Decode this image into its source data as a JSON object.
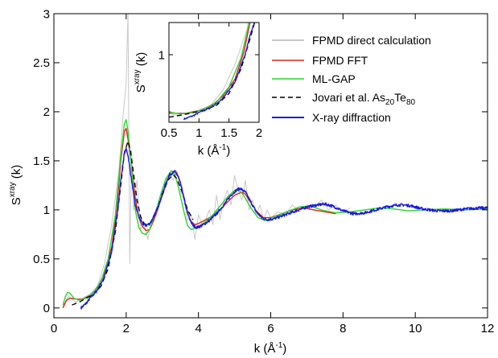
{
  "chart_data": {
    "type": "line",
    "main": {
      "xlabel": {
        "text": "k (Å",
        "sup": "-1",
        "tail": ")"
      },
      "ylabel": {
        "text": "S",
        "sup": "xray",
        "tail": " (k)"
      },
      "xlim": [
        0,
        12
      ],
      "ylim": [
        -0.1,
        3
      ],
      "xticks": [
        0,
        2,
        4,
        6,
        8,
        10,
        12
      ],
      "xtick_labels": [
        "0",
        "2",
        "4",
        "6",
        "8",
        "10",
        "12"
      ],
      "yticks": [
        0,
        0.5,
        1,
        1.5,
        2,
        2.5,
        3
      ],
      "ytick_labels": [
        "0",
        "0.5",
        "1",
        "1.5",
        "2",
        "2.5",
        "3"
      ],
      "grid": false,
      "legend_position": "top-right"
    },
    "inset": {
      "xlabel": {
        "text": "k (Å",
        "sup": "-1",
        "tail": ")"
      },
      "ylabel": {
        "text": "S",
        "sup": "xray",
        "tail": " (k)"
      },
      "xlim": [
        0.5,
        2
      ],
      "ylim": [
        -0.05,
        1.5
      ],
      "xticks": [
        0.5,
        1,
        1.5,
        2
      ],
      "xtick_labels": [
        "0.5",
        "1",
        "1.5",
        "2"
      ],
      "yticks": [
        1
      ],
      "ytick_labels": [
        "1"
      ]
    },
    "series": [
      {
        "name": "FPMD direct calculation",
        "color": "#c8c8c8",
        "dash": "solid",
        "points": [
          [
            0.25,
            0.02
          ],
          [
            0.4,
            0.12
          ],
          [
            0.6,
            0.06
          ],
          [
            0.8,
            0.1
          ],
          [
            1.0,
            0.14
          ],
          [
            1.2,
            0.22
          ],
          [
            1.4,
            0.45
          ],
          [
            1.6,
            0.85
          ],
          [
            1.8,
            1.4
          ],
          [
            1.9,
            1.9
          ],
          [
            1.95,
            2.1
          ],
          [
            2.0,
            2.3
          ],
          [
            2.05,
            3.0
          ],
          [
            2.1,
            0.45
          ],
          [
            2.15,
            1.6
          ],
          [
            2.2,
            1.0
          ],
          [
            2.3,
            1.3
          ],
          [
            2.4,
            0.8
          ],
          [
            2.5,
            0.85
          ],
          [
            2.6,
            0.7
          ],
          [
            2.7,
            0.9
          ],
          [
            2.8,
            0.95
          ],
          [
            2.9,
            1.05
          ],
          [
            3.0,
            1.15
          ],
          [
            3.1,
            1.3
          ],
          [
            3.2,
            1.38
          ],
          [
            3.3,
            1.3
          ],
          [
            3.4,
            1.4
          ],
          [
            3.5,
            1.2
          ],
          [
            3.6,
            1.1
          ],
          [
            3.7,
            0.9
          ],
          [
            3.8,
            0.95
          ],
          [
            3.9,
            0.7
          ],
          [
            4.0,
            0.95
          ],
          [
            4.1,
            0.85
          ],
          [
            4.2,
            0.9
          ],
          [
            4.3,
            1.0
          ],
          [
            4.4,
            0.85
          ],
          [
            4.5,
            1.15
          ],
          [
            4.6,
            0.9
          ],
          [
            4.7,
            1.1
          ],
          [
            4.8,
            1.2
          ],
          [
            4.9,
            1.05
          ],
          [
            5.0,
            1.35
          ],
          [
            5.1,
            1.2
          ],
          [
            5.2,
            1.1
          ],
          [
            5.3,
            1.3
          ],
          [
            5.4,
            1.0
          ],
          [
            5.5,
            1.1
          ],
          [
            5.6,
            0.95
          ],
          [
            5.7,
            1.05
          ],
          [
            5.8,
            0.9
          ],
          [
            5.9,
            1.0
          ],
          [
            6.0,
            0.92
          ],
          [
            6.2,
            0.98
          ],
          [
            6.4,
            0.95
          ],
          [
            6.6,
            1.05
          ],
          [
            6.8,
            0.98
          ],
          [
            7.0,
            1.05
          ],
          [
            7.2,
            1.02
          ],
          [
            7.4,
            1.1
          ],
          [
            7.6,
            1.0
          ],
          [
            7.8,
            1.05
          ],
          [
            8.0,
            0.98
          ],
          [
            8.2,
            1.02
          ]
        ]
      },
      {
        "name": "FPMD FFT",
        "color": "#e0231c",
        "dash": "solid",
        "points": [
          [
            0.25,
            0.0
          ],
          [
            0.35,
            0.08
          ],
          [
            0.45,
            0.1
          ],
          [
            0.6,
            0.09
          ],
          [
            0.8,
            0.09
          ],
          [
            1.0,
            0.13
          ],
          [
            1.2,
            0.2
          ],
          [
            1.4,
            0.36
          ],
          [
            1.6,
            0.62
          ],
          [
            1.75,
            1.05
          ],
          [
            1.85,
            1.5
          ],
          [
            1.95,
            1.8
          ],
          [
            2.0,
            1.83
          ],
          [
            2.05,
            1.72
          ],
          [
            2.15,
            1.45
          ],
          [
            2.25,
            1.12
          ],
          [
            2.35,
            0.92
          ],
          [
            2.45,
            0.83
          ],
          [
            2.55,
            0.79
          ],
          [
            2.65,
            0.8
          ],
          [
            2.75,
            0.88
          ],
          [
            2.85,
            0.98
          ],
          [
            3.0,
            1.15
          ],
          [
            3.15,
            1.32
          ],
          [
            3.3,
            1.39
          ],
          [
            3.4,
            1.38
          ],
          [
            3.5,
            1.28
          ],
          [
            3.6,
            1.12
          ],
          [
            3.7,
            0.96
          ],
          [
            3.8,
            0.88
          ],
          [
            3.9,
            0.85
          ],
          [
            4.0,
            0.86
          ],
          [
            4.2,
            0.9
          ],
          [
            4.4,
            0.94
          ],
          [
            4.6,
            1.0
          ],
          [
            4.8,
            1.08
          ],
          [
            5.0,
            1.15
          ],
          [
            5.2,
            1.18
          ],
          [
            5.3,
            1.16
          ],
          [
            5.4,
            1.1
          ],
          [
            5.6,
            0.99
          ],
          [
            5.8,
            0.92
          ],
          [
            6.0,
            0.92
          ],
          [
            6.3,
            0.96
          ],
          [
            6.6,
            1.0
          ],
          [
            6.9,
            1.02
          ],
          [
            7.2,
            1.0
          ],
          [
            7.5,
            0.98
          ],
          [
            7.8,
            0.96
          ]
        ]
      },
      {
        "name": "ML-GAP",
        "color": "#2ad62a",
        "dash": "solid",
        "points": [
          [
            0.25,
            0.03
          ],
          [
            0.32,
            0.12
          ],
          [
            0.38,
            0.16
          ],
          [
            0.45,
            0.15
          ],
          [
            0.55,
            0.1
          ],
          [
            0.7,
            0.08
          ],
          [
            0.9,
            0.1
          ],
          [
            1.1,
            0.16
          ],
          [
            1.3,
            0.27
          ],
          [
            1.5,
            0.5
          ],
          [
            1.7,
            0.95
          ],
          [
            1.85,
            1.55
          ],
          [
            1.95,
            1.88
          ],
          [
            2.0,
            1.92
          ],
          [
            2.05,
            1.8
          ],
          [
            2.15,
            1.42
          ],
          [
            2.25,
            1.0
          ],
          [
            2.35,
            0.82
          ],
          [
            2.45,
            0.76
          ],
          [
            2.55,
            0.75
          ],
          [
            2.65,
            0.8
          ],
          [
            2.8,
            0.96
          ],
          [
            2.95,
            1.15
          ],
          [
            3.1,
            1.32
          ],
          [
            3.25,
            1.4
          ],
          [
            3.35,
            1.36
          ],
          [
            3.45,
            1.22
          ],
          [
            3.6,
            0.98
          ],
          [
            3.7,
            0.84
          ],
          [
            3.8,
            0.8
          ],
          [
            3.95,
            0.82
          ],
          [
            4.2,
            0.88
          ],
          [
            4.4,
            0.95
          ],
          [
            4.6,
            1.04
          ],
          [
            4.8,
            1.13
          ],
          [
            5.0,
            1.2
          ],
          [
            5.1,
            1.21
          ],
          [
            5.25,
            1.15
          ],
          [
            5.45,
            1.02
          ],
          [
            5.65,
            0.92
          ],
          [
            5.85,
            0.89
          ],
          [
            6.1,
            0.93
          ],
          [
            6.5,
            0.99
          ],
          [
            6.8,
            1.03
          ],
          [
            7.1,
            1.04
          ],
          [
            7.4,
            1.0
          ],
          [
            7.8,
            0.97
          ],
          [
            8.2,
            0.98
          ],
          [
            8.6,
            1.0
          ],
          [
            9.0,
            1.02
          ],
          [
            9.4,
            1.01
          ],
          [
            9.8,
            0.99
          ],
          [
            10.2,
            1.0
          ],
          [
            10.8,
            1.01
          ],
          [
            11.4,
            1.0
          ],
          [
            12.0,
            1.01
          ]
        ]
      },
      {
        "name": "Jovari et al. As",
        "name_sub1": "20",
        "name_mid": "Te",
        "name_sub2": "80",
        "color": "#000000",
        "dash": "6 4",
        "points": [
          [
            0.5,
            0.03
          ],
          [
            0.7,
            0.06
          ],
          [
            0.9,
            0.1
          ],
          [
            1.1,
            0.14
          ],
          [
            1.3,
            0.22
          ],
          [
            1.5,
            0.4
          ],
          [
            1.7,
            0.78
          ],
          [
            1.85,
            1.25
          ],
          [
            1.95,
            1.58
          ],
          [
            2.05,
            1.7
          ],
          [
            2.12,
            1.6
          ],
          [
            2.2,
            1.38
          ],
          [
            2.3,
            1.1
          ],
          [
            2.4,
            0.93
          ],
          [
            2.5,
            0.86
          ],
          [
            2.6,
            0.84
          ],
          [
            2.7,
            0.88
          ],
          [
            2.85,
            1.0
          ],
          [
            3.0,
            1.15
          ],
          [
            3.15,
            1.3
          ],
          [
            3.3,
            1.36
          ],
          [
            3.4,
            1.32
          ],
          [
            3.55,
            1.18
          ],
          [
            3.7,
            1.0
          ],
          [
            3.85,
            0.9
          ]
        ]
      },
      {
        "name": "X-ray diffraction",
        "color": "#1a1ae0",
        "dash": "solid",
        "noise": 0.014,
        "points": [
          [
            0.75,
            0.0
          ],
          [
            0.9,
            0.05
          ],
          [
            1.0,
            0.1
          ],
          [
            1.2,
            0.18
          ],
          [
            1.4,
            0.32
          ],
          [
            1.6,
            0.58
          ],
          [
            1.75,
            0.95
          ],
          [
            1.85,
            1.3
          ],
          [
            1.95,
            1.58
          ],
          [
            2.0,
            1.62
          ],
          [
            2.05,
            1.56
          ],
          [
            2.15,
            1.3
          ],
          [
            2.25,
            1.05
          ],
          [
            2.35,
            0.93
          ],
          [
            2.45,
            0.86
          ],
          [
            2.55,
            0.84
          ],
          [
            2.65,
            0.86
          ],
          [
            2.75,
            0.92
          ],
          [
            2.9,
            1.05
          ],
          [
            3.05,
            1.22
          ],
          [
            3.2,
            1.36
          ],
          [
            3.35,
            1.39
          ],
          [
            3.45,
            1.33
          ],
          [
            3.55,
            1.2
          ],
          [
            3.65,
            1.04
          ],
          [
            3.75,
            0.91
          ],
          [
            3.85,
            0.84
          ],
          [
            3.95,
            0.82
          ],
          [
            4.1,
            0.84
          ],
          [
            4.3,
            0.89
          ],
          [
            4.5,
            0.96
          ],
          [
            4.7,
            1.05
          ],
          [
            4.9,
            1.15
          ],
          [
            5.05,
            1.2
          ],
          [
            5.15,
            1.22
          ],
          [
            5.3,
            1.18
          ],
          [
            5.45,
            1.08
          ],
          [
            5.6,
            0.98
          ],
          [
            5.75,
            0.92
          ],
          [
            5.9,
            0.9
          ],
          [
            6.1,
            0.91
          ],
          [
            6.4,
            0.95
          ],
          [
            6.7,
            0.99
          ],
          [
            7.0,
            1.03
          ],
          [
            7.3,
            1.05
          ],
          [
            7.5,
            1.06
          ],
          [
            7.7,
            1.04
          ],
          [
            8.0,
            0.99
          ],
          [
            8.3,
            0.96
          ],
          [
            8.6,
            0.97
          ],
          [
            8.9,
            1.0
          ],
          [
            9.2,
            1.03
          ],
          [
            9.5,
            1.05
          ],
          [
            9.7,
            1.05
          ],
          [
            9.9,
            1.04
          ],
          [
            10.2,
            1.01
          ],
          [
            10.6,
            0.99
          ],
          [
            11.0,
            0.99
          ],
          [
            11.4,
            1.01
          ],
          [
            11.8,
            1.02
          ],
          [
            12.0,
            1.02
          ]
        ]
      }
    ]
  }
}
